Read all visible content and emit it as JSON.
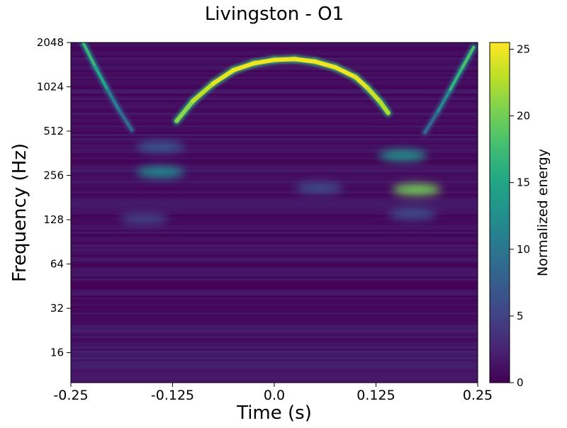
{
  "chart_data": {
    "type": "heatmap",
    "title": "Livingston - O1",
    "xlabel": "Time (s)",
    "ylabel": "Frequency (Hz)",
    "xlim": [
      -0.25,
      0.25
    ],
    "ylim": [
      10,
      2048
    ],
    "yscale": "log2",
    "xticks": [
      -0.25,
      -0.125,
      0.0,
      0.125,
      0.25
    ],
    "xtick_labels": [
      "-0.25",
      "-0.125",
      "0.0",
      "0.125",
      "0.25"
    ],
    "yticks": [
      16,
      32,
      64,
      128,
      256,
      512,
      1024,
      2048
    ],
    "ytick_labels": [
      "16",
      "32",
      "64",
      "128",
      "256",
      "512",
      "1024",
      "2048"
    ],
    "colorbar": {
      "label": "Normalized energy",
      "min": 0,
      "max": 25.5,
      "ticks": [
        0,
        5,
        10,
        15,
        20,
        25
      ],
      "tick_labels": [
        "0",
        "5",
        "10",
        "15",
        "20",
        "25"
      ],
      "colormap": "viridis"
    },
    "features": {
      "main_arc": [
        {
          "t": -0.12,
          "f": 600,
          "e": 20
        },
        {
          "t": -0.1,
          "f": 820,
          "e": 22
        },
        {
          "t": -0.075,
          "f": 1080,
          "e": 24
        },
        {
          "t": -0.05,
          "f": 1330,
          "e": 25
        },
        {
          "t": -0.025,
          "f": 1480,
          "e": 25
        },
        {
          "t": 0.0,
          "f": 1560,
          "e": 25
        },
        {
          "t": 0.025,
          "f": 1580,
          "e": 25
        },
        {
          "t": 0.05,
          "f": 1520,
          "e": 25
        },
        {
          "t": 0.075,
          "f": 1390,
          "e": 25
        },
        {
          "t": 0.1,
          "f": 1190,
          "e": 25
        },
        {
          "t": 0.115,
          "f": 1000,
          "e": 24
        },
        {
          "t": 0.13,
          "f": 810,
          "e": 23
        },
        {
          "t": 0.14,
          "f": 680,
          "e": 22
        }
      ],
      "left_track": [
        {
          "t": -0.235,
          "f": 2048,
          "e": 16
        },
        {
          "t": -0.22,
          "f": 1400,
          "e": 18
        },
        {
          "t": -0.205,
          "f": 980,
          "e": 12
        },
        {
          "t": -0.19,
          "f": 700,
          "e": 10
        },
        {
          "t": -0.175,
          "f": 520,
          "e": 8
        }
      ],
      "right_track": [
        {
          "t": 0.245,
          "f": 1900,
          "e": 17
        },
        {
          "t": 0.23,
          "f": 1350,
          "e": 19
        },
        {
          "t": 0.215,
          "f": 950,
          "e": 14
        },
        {
          "t": 0.2,
          "f": 680,
          "e": 10
        },
        {
          "t": 0.185,
          "f": 500,
          "e": 8
        }
      ],
      "blobs": [
        {
          "t": -0.14,
          "f": 270,
          "e": 12
        },
        {
          "t": -0.14,
          "f": 400,
          "e": 7
        },
        {
          "t": -0.16,
          "f": 130,
          "e": 5
        },
        {
          "t": 0.055,
          "f": 210,
          "e": 6
        },
        {
          "t": 0.175,
          "f": 205,
          "e": 20
        },
        {
          "t": 0.158,
          "f": 350,
          "e": 13
        },
        {
          "t": 0.17,
          "f": 140,
          "e": 6
        }
      ]
    }
  }
}
